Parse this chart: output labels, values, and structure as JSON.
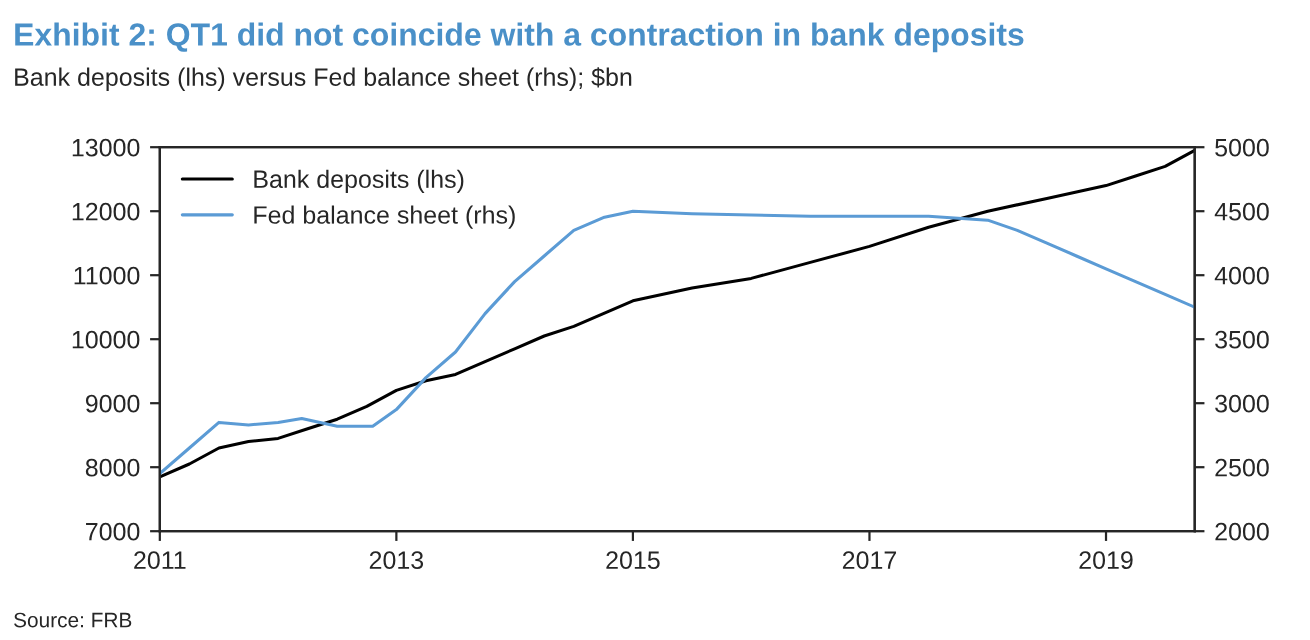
{
  "chart_data": {
    "type": "line",
    "title": "Exhibit 2: QT1 did not coincide with a contraction in bank deposits",
    "subtitle": "Bank deposits (lhs) versus Fed balance sheet (rhs); $bn",
    "series": [
      {
        "name": "Bank deposits (lhs)",
        "color": "#000000",
        "x": [
          2011.0,
          2011.25,
          2011.5,
          2011.75,
          2012.0,
          2012.25,
          2012.5,
          2012.75,
          2013.0,
          2013.25,
          2013.5,
          2013.75,
          2014.0,
          2014.25,
          2014.5,
          2014.75,
          2015.0,
          2015.5,
          2016.0,
          2016.5,
          2017.0,
          2017.5,
          2018.0,
          2018.5,
          2019.0,
          2019.25,
          2019.5,
          2019.75
        ],
        "values": [
          7850,
          8050,
          8300,
          8400,
          8450,
          8600,
          8750,
          8950,
          9200,
          9350,
          9450,
          9650,
          9850,
          10050,
          10200,
          10400,
          10600,
          10800,
          10950,
          11200,
          11450,
          11750,
          12000,
          12200,
          12400,
          12550,
          12700,
          12950
        ]
      },
      {
        "name": "Fed balance sheet (rhs)",
        "color": "#5b9bd5",
        "axis": "y2",
        "x": [
          2011.0,
          2011.25,
          2011.5,
          2011.75,
          2012.0,
          2012.2,
          2012.5,
          2012.8,
          2013.0,
          2013.25,
          2013.5,
          2013.75,
          2014.0,
          2014.25,
          2014.5,
          2014.75,
          2015.0,
          2015.5,
          2016.0,
          2016.5,
          2017.0,
          2017.5,
          2018.0,
          2018.25,
          2018.5,
          2018.75,
          2019.0,
          2019.25,
          2019.5,
          2019.75
        ],
        "values": [
          2450,
          2650,
          2850,
          2830,
          2850,
          2880,
          2820,
          2820,
          2950,
          3200,
          3400,
          3700,
          3950,
          4150,
          4350,
          4450,
          4500,
          4480,
          4470,
          4460,
          4460,
          4460,
          4430,
          4350,
          4250,
          4150,
          4050,
          3950,
          3850,
          3750
        ]
      }
    ],
    "xlim": [
      2011,
      2019.75
    ],
    "xticks": [
      2011,
      2013,
      2015,
      2017,
      2019
    ],
    "ylim": [
      7000,
      13000
    ],
    "yticks": [
      7000,
      8000,
      9000,
      10000,
      11000,
      12000,
      13000
    ],
    "y2lim": [
      2000,
      5000
    ],
    "y2ticks": [
      2000,
      2500,
      3000,
      3500,
      4000,
      4500,
      5000
    ],
    "legend": "top left",
    "grid": false,
    "annotations": [
      "Source: FRB"
    ]
  }
}
